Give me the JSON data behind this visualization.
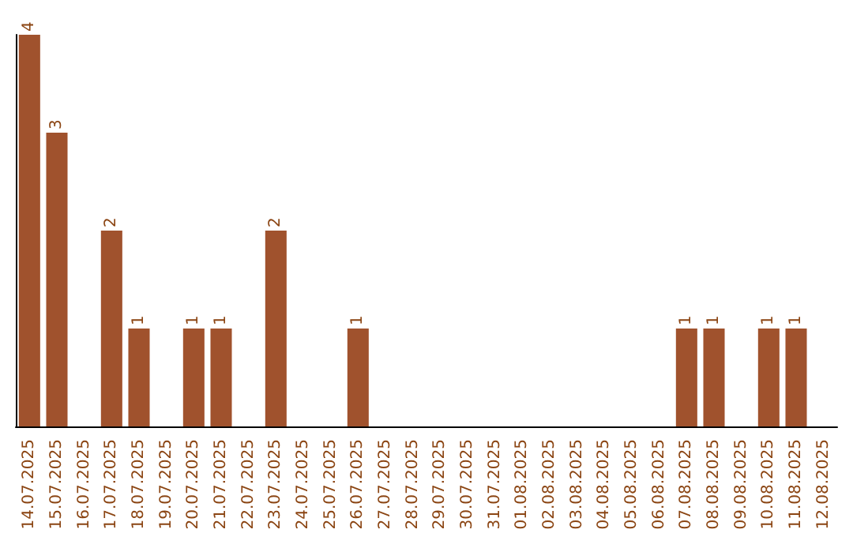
{
  "chart_data": {
    "type": "bar",
    "categories": [
      "14.07.2025",
      "15.07.2025",
      "16.07.2025",
      "17.07.2025",
      "18.07.2025",
      "19.07.2025",
      "20.07.2025",
      "21.07.2025",
      "22.07.2025",
      "23.07.2025",
      "24.07.2025",
      "25.07.2025",
      "26.07.2025",
      "27.07.2025",
      "28.07.2025",
      "29.07.2025",
      "30.07.2025",
      "31.07.2025",
      "01.08.2025",
      "02.08.2025",
      "03.08.2025",
      "04.08.2025",
      "05.08.2025",
      "06.08.2025",
      "07.08.2025",
      "08.08.2025",
      "09.08.2025",
      "10.08.2025",
      "11.08.2025",
      "12.08.2025"
    ],
    "values": [
      4,
      3,
      0,
      2,
      1,
      0,
      1,
      1,
      0,
      2,
      0,
      0,
      1,
      0,
      0,
      0,
      0,
      0,
      0,
      0,
      0,
      0,
      0,
      0,
      1,
      1,
      0,
      1,
      1,
      0
    ],
    "value_labels": [
      "4",
      "3",
      null,
      "2",
      "1",
      null,
      "1",
      "1",
      null,
      "2",
      null,
      null,
      "1",
      null,
      null,
      null,
      null,
      null,
      null,
      null,
      null,
      null,
      null,
      null,
      "1",
      "1",
      null,
      "1",
      "1",
      null
    ],
    "color": "#a0522d",
    "grid": false
  }
}
